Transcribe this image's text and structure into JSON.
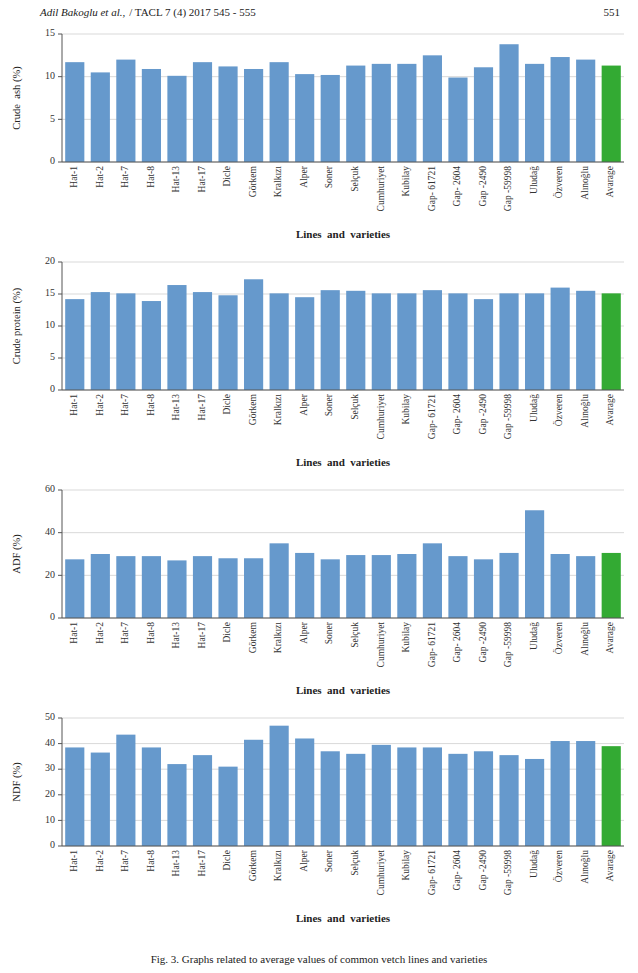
{
  "header": {
    "author": "Adil Bakoglu et al.,",
    "journal": "/ TACL 7 (4) 2017 545 - 555"
  },
  "page_number": "551",
  "caption": "Fig. 3. Graphs related to average values of common vetch lines and varieties",
  "chart_data": [
    {
      "type": "bar",
      "categories": [
        "Hat-1",
        "Hat-2",
        "Hat-7",
        "Hat-8",
        "Hat-13",
        "Hat-17",
        "Dicle",
        "Görkem",
        "Kralkızı",
        "Alper",
        "Soner",
        "Selçuk",
        "Cumhuriyet",
        "Kubilay",
        "Gap- 61721",
        "Gap- 2604",
        "Gap -2490",
        "Gap -59998",
        "Uludağ",
        "Özveren",
        "Alınoğlu",
        "Avarage"
      ],
      "values": [
        11.7,
        10.5,
        12.0,
        10.9,
        10.1,
        11.7,
        11.2,
        10.9,
        11.7,
        10.3,
        10.2,
        11.3,
        11.5,
        11.5,
        12.5,
        9.9,
        11.1,
        13.8,
        11.5,
        12.3,
        12.0,
        11.3
      ],
      "colors": [
        "#6699CC",
        "#6699CC",
        "#6699CC",
        "#6699CC",
        "#6699CC",
        "#6699CC",
        "#6699CC",
        "#6699CC",
        "#6699CC",
        "#6699CC",
        "#6699CC",
        "#6699CC",
        "#6699CC",
        "#6699CC",
        "#6699CC",
        "#6699CC",
        "#6699CC",
        "#6699CC",
        "#6699CC",
        "#6699CC",
        "#6699CC",
        "#33AA33"
      ],
      "x_label": "Lines  and  varieties",
      "y_label": "Crude  ash (%)",
      "ylim": [
        0,
        15
      ],
      "yticks": [
        0,
        5,
        10,
        15
      ],
      "grid": true
    },
    {
      "type": "bar",
      "categories": [
        "Hat-1",
        "Hat-2",
        "Hat-7",
        "Hat-8",
        "Hat-13",
        "Hat-17",
        "Dicle",
        "Görkem",
        "Kralkızı",
        "Alper",
        "Soner",
        "Selçuk",
        "Cumhuriyet",
        "Kubilay",
        "Gap- 61721",
        "Gap- 2604",
        "Gap -2490",
        "Gap -59998",
        "Uludağ",
        "Özveren",
        "Alınoğlu",
        "Avarage"
      ],
      "values": [
        14.2,
        15.3,
        15.1,
        13.9,
        16.4,
        15.3,
        14.8,
        17.3,
        15.1,
        14.5,
        15.6,
        15.5,
        15.1,
        15.1,
        15.6,
        15.1,
        14.2,
        15.1,
        15.1,
        16.0,
        15.5,
        15.1
      ],
      "colors": [
        "#6699CC",
        "#6699CC",
        "#6699CC",
        "#6699CC",
        "#6699CC",
        "#6699CC",
        "#6699CC",
        "#6699CC",
        "#6699CC",
        "#6699CC",
        "#6699CC",
        "#6699CC",
        "#6699CC",
        "#6699CC",
        "#6699CC",
        "#6699CC",
        "#6699CC",
        "#6699CC",
        "#6699CC",
        "#6699CC",
        "#6699CC",
        "#33AA33"
      ],
      "x_label": "Lines  and  varieties",
      "y_label": "Crude protein (%)",
      "ylim": [
        0,
        20
      ],
      "yticks": [
        0,
        5,
        10,
        15,
        20
      ],
      "grid": true
    },
    {
      "type": "bar",
      "categories": [
        "Hat-1",
        "Hat-2",
        "Hat-7",
        "Hat-8",
        "Hat-13",
        "Hat-17",
        "Dicle",
        "Görkem",
        "Kralkızı",
        "Alper",
        "Soner",
        "Selçuk",
        "Cumhuriyet",
        "Kubilay",
        "Gap- 61721",
        "Gap- 2604",
        "Gap -2490",
        "Gap -59998",
        "Uludağ",
        "Özveren",
        "Alınoğlu",
        "Avarage"
      ],
      "values": [
        27.5,
        30.0,
        29.0,
        29.0,
        27.0,
        29.0,
        28.0,
        28.0,
        35.0,
        30.5,
        27.5,
        29.5,
        29.5,
        30.0,
        35.0,
        29.0,
        27.5,
        30.5,
        50.5,
        30.0,
        29.0,
        30.5
      ],
      "colors": [
        "#6699CC",
        "#6699CC",
        "#6699CC",
        "#6699CC",
        "#6699CC",
        "#6699CC",
        "#6699CC",
        "#6699CC",
        "#6699CC",
        "#6699CC",
        "#6699CC",
        "#6699CC",
        "#6699CC",
        "#6699CC",
        "#6699CC",
        "#6699CC",
        "#6699CC",
        "#6699CC",
        "#6699CC",
        "#6699CC",
        "#6699CC",
        "#33AA33"
      ],
      "x_label": "Lines  and  varieties",
      "y_label": "ADF (%)",
      "ylim": [
        0,
        60
      ],
      "yticks": [
        0,
        20,
        40,
        60
      ],
      "grid": true
    },
    {
      "type": "bar",
      "categories": [
        "Hat-1",
        "Hat-2",
        "Hat-7",
        "Hat-8",
        "Hat-13",
        "Hat-17",
        "Dicle",
        "Görkem",
        "Kralkızı",
        "Alper",
        "Soner",
        "Selçuk",
        "Cumhuriyet",
        "Kubilay",
        "Gap- 61721",
        "Gap- 2604",
        "Gap -2490",
        "Gap -59998",
        "Uludağ",
        "Özveren",
        "Alınoğlu",
        "Avarage"
      ],
      "values": [
        38.5,
        36.5,
        43.5,
        38.5,
        32.0,
        35.5,
        31.0,
        41.5,
        47.0,
        42.0,
        37.0,
        36.0,
        39.5,
        38.5,
        38.5,
        36.0,
        37.0,
        35.5,
        34.0,
        41.0,
        41.0,
        39.0
      ],
      "colors": [
        "#6699CC",
        "#6699CC",
        "#6699CC",
        "#6699CC",
        "#6699CC",
        "#6699CC",
        "#6699CC",
        "#6699CC",
        "#6699CC",
        "#6699CC",
        "#6699CC",
        "#6699CC",
        "#6699CC",
        "#6699CC",
        "#6699CC",
        "#6699CC",
        "#6699CC",
        "#6699CC",
        "#6699CC",
        "#6699CC",
        "#6699CC",
        "#33AA33"
      ],
      "x_label": "Lines  and  varieties",
      "y_label": "NDF (%)",
      "ylim": [
        0,
        50
      ],
      "yticks": [
        0,
        10,
        20,
        30,
        40,
        50
      ],
      "grid": true
    }
  ]
}
